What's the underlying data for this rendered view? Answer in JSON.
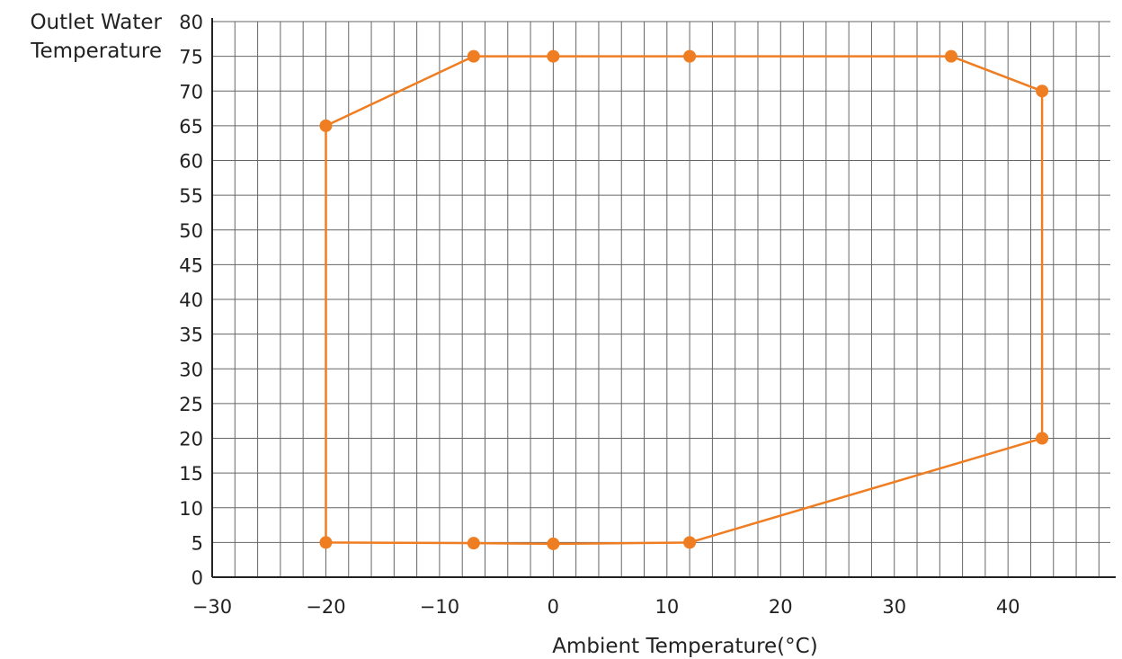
{
  "chart_data": {
    "type": "line",
    "xlabel": "Ambient Temperature(°C)",
    "ylabel_lines": [
      "Outlet Water",
      "Temperature"
    ],
    "xlim": [
      -30,
      49
    ],
    "ylim": [
      0,
      80
    ],
    "x_ticks": [
      "−30",
      "−20",
      "−10",
      "0",
      "10",
      "20",
      "30",
      "40"
    ],
    "x_tick_values": [
      -30,
      -20,
      -10,
      0,
      10,
      20,
      30,
      40
    ],
    "y_ticks": [
      "0",
      "5",
      "10",
      "15",
      "20",
      "25",
      "30",
      "35",
      "40",
      "45",
      "50",
      "55",
      "60",
      "65",
      "70",
      "75",
      "80"
    ],
    "y_tick_values": [
      0,
      5,
      10,
      15,
      20,
      25,
      30,
      35,
      40,
      45,
      50,
      55,
      60,
      65,
      70,
      75,
      80
    ],
    "grid": true,
    "minor_grid_x_step": 2,
    "series": [
      {
        "closed": true,
        "points": [
          {
            "x": -20,
            "y": 65
          },
          {
            "x": -7,
            "y": 75
          },
          {
            "x": 0,
            "y": 75
          },
          {
            "x": 12,
            "y": 75
          },
          {
            "x": 35,
            "y": 75
          },
          {
            "x": 43,
            "y": 70
          },
          {
            "x": 43,
            "y": 20
          },
          {
            "x": 12,
            "y": 5
          },
          {
            "x": 0,
            "y": 4.8
          },
          {
            "x": -7,
            "y": 4.9
          },
          {
            "x": -20,
            "y": 5
          }
        ]
      }
    ],
    "colors": {
      "series": "#ef7d22",
      "grid": "#666666",
      "axis": "#222222"
    }
  }
}
